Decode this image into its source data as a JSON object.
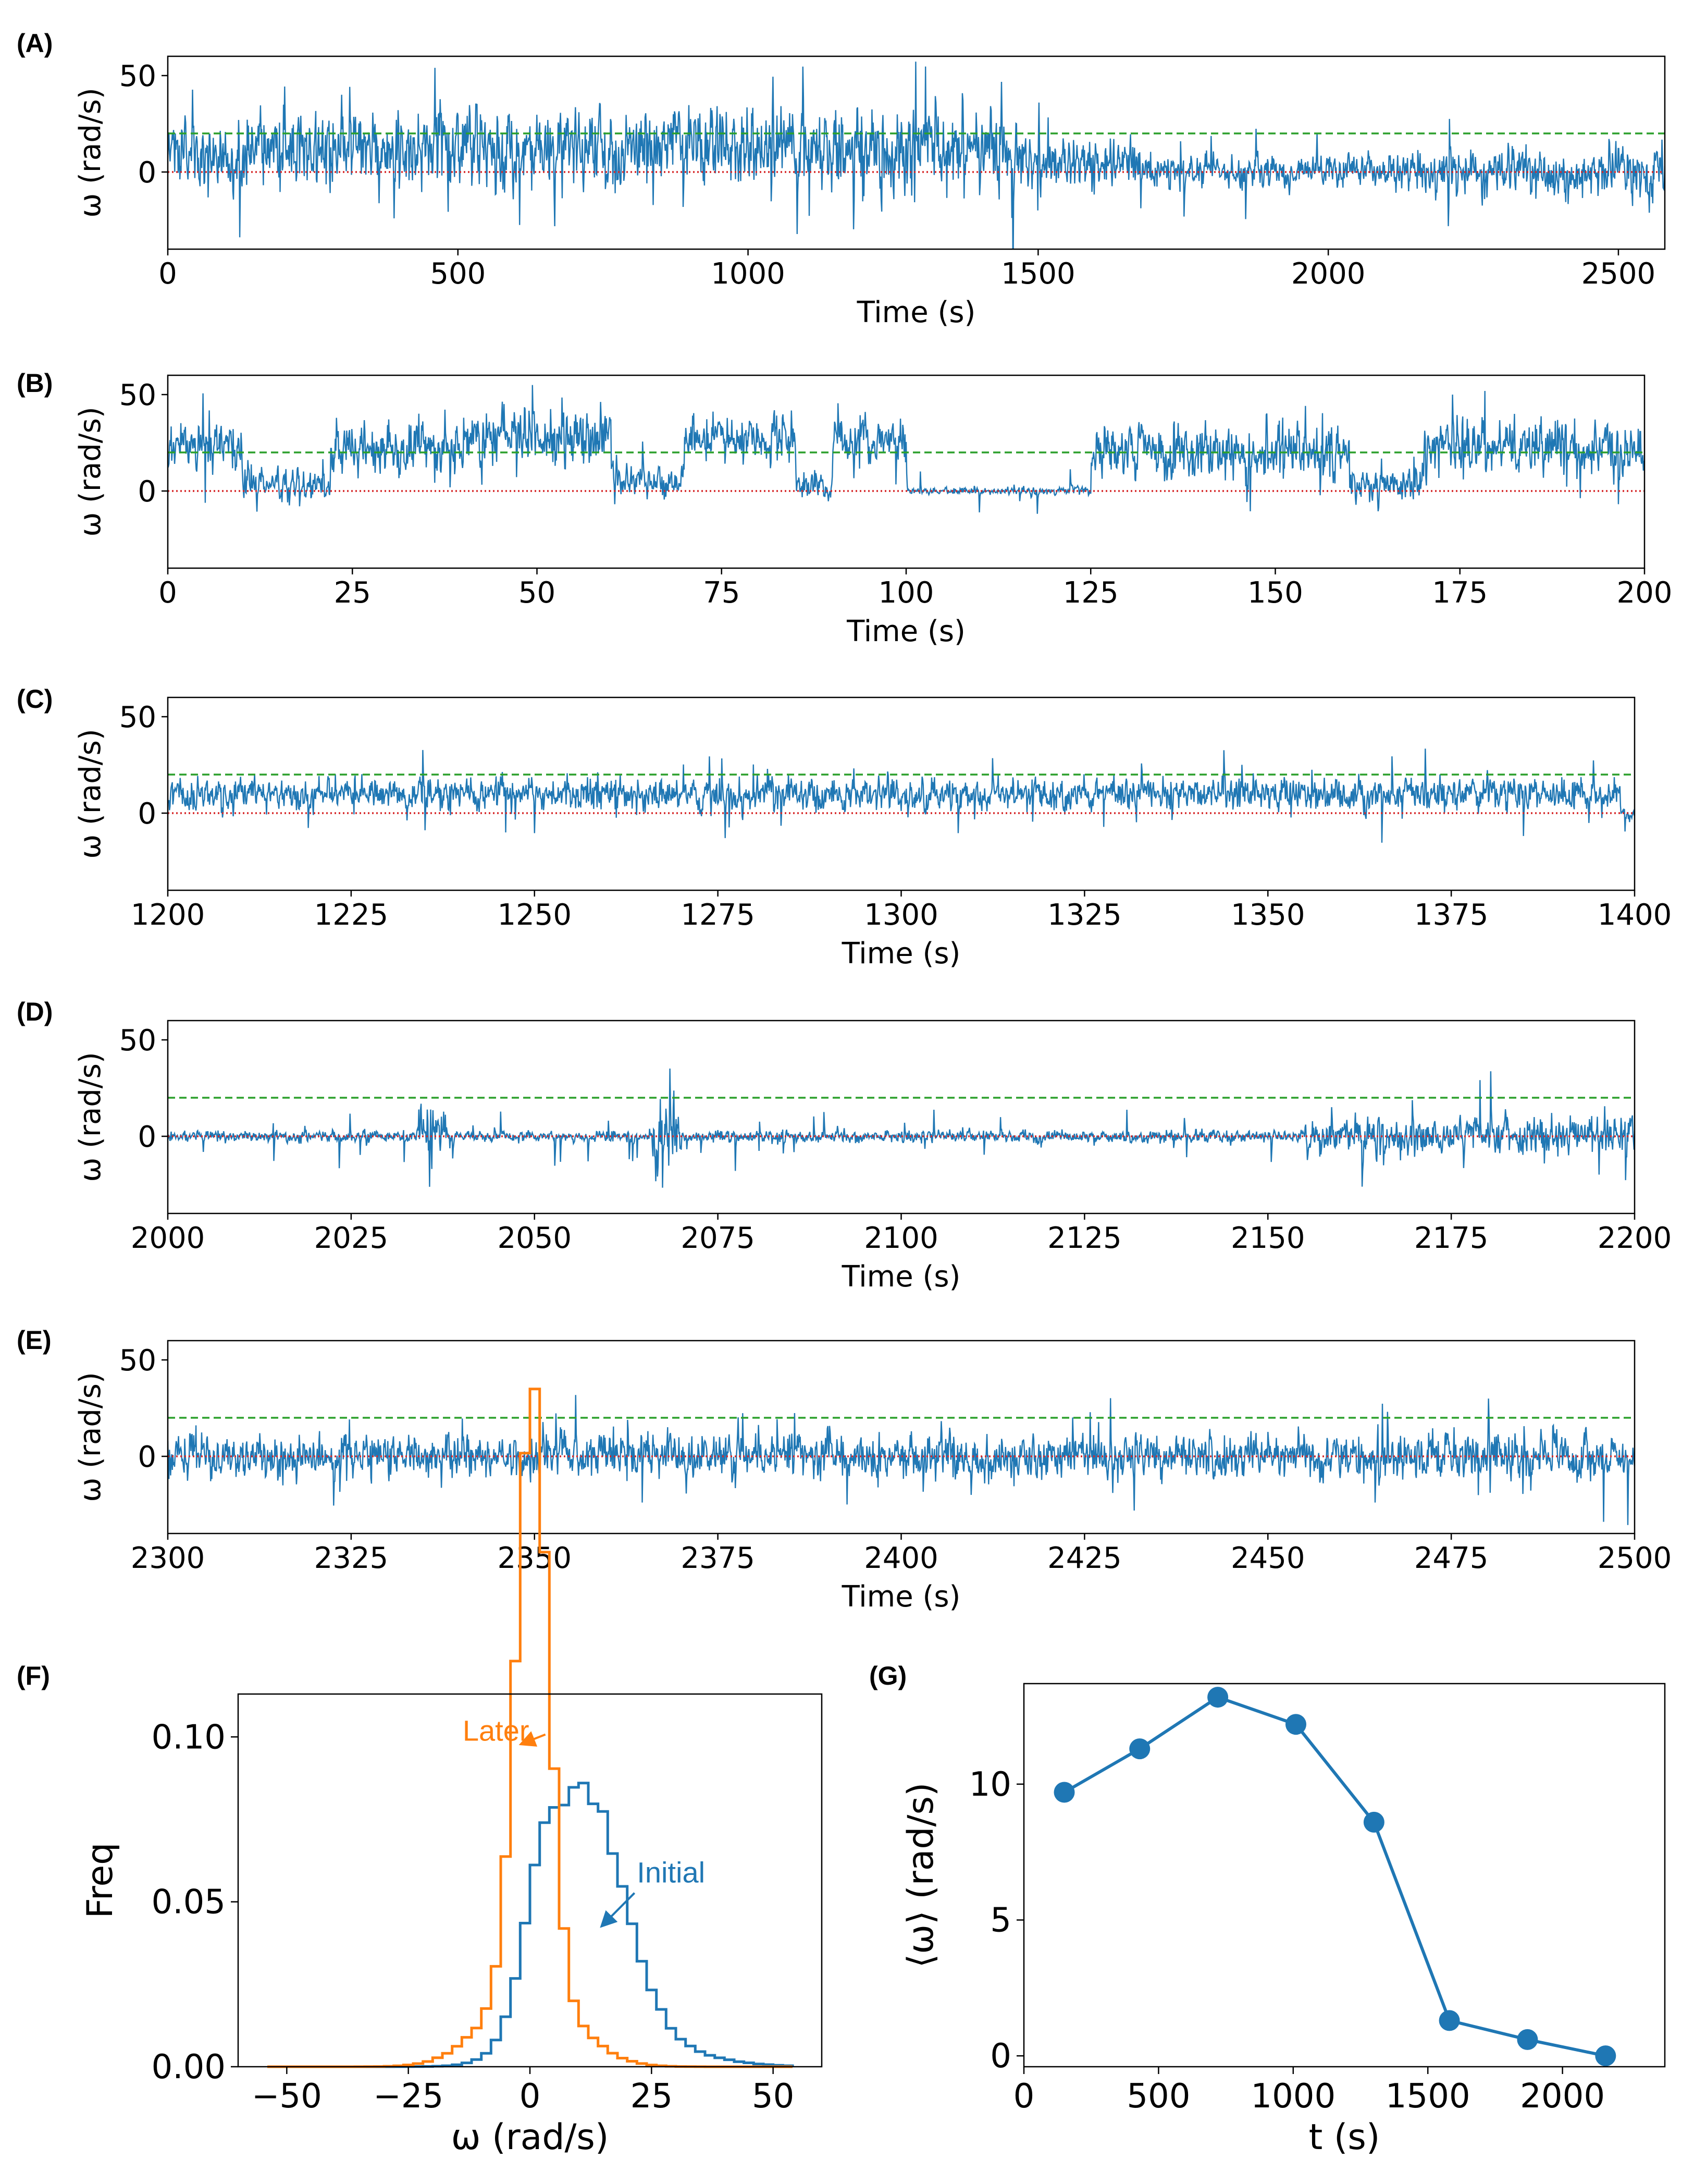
{
  "colors": {
    "trace": "#1f77b4",
    "later": "#ff7f0e",
    "threshold": "#2ca02c",
    "zero": "#d62728"
  },
  "chart_data": [
    {
      "id": "A",
      "label": "(A)",
      "type": "line",
      "title": "",
      "xlabel": "Time (s)",
      "ylabel": "ω (rad/s)",
      "xlim": [
        0,
        2580
      ],
      "ylim": [
        -40,
        60
      ],
      "xticks": [
        0,
        500,
        1000,
        1500,
        2000,
        2500
      ],
      "xtick_labels": [
        "0",
        "500",
        "1000",
        "1500",
        "2000",
        "2500"
      ],
      "yticks": [
        0,
        50
      ],
      "ytick_labels": [
        "0",
        "50"
      ],
      "reference_lines": [
        {
          "y": 20,
          "style": "dashed",
          "color": "green"
        },
        {
          "y": 0,
          "style": "dotted",
          "color": "red"
        }
      ],
      "segments": [
        {
          "start": 0,
          "end": 100,
          "mean": 10,
          "sd": 12
        },
        {
          "start": 100,
          "end": 120,
          "mean": 2,
          "sd": 8
        },
        {
          "start": 120,
          "end": 1480,
          "mean": 12,
          "sd": 15
        },
        {
          "start": 1480,
          "end": 1700,
          "mean": 4,
          "sd": 9
        },
        {
          "start": 1700,
          "end": 2150,
          "mean": 0,
          "sd": 6
        },
        {
          "start": 2150,
          "end": 2580,
          "mean": 0,
          "sd": 9
        }
      ]
    },
    {
      "id": "B",
      "label": "(B)",
      "type": "line",
      "title": "",
      "xlabel": "Time (s)",
      "ylabel": "ω (rad/s)",
      "xlim": [
        0,
        200
      ],
      "ylim": [
        -40,
        60
      ],
      "xticks": [
        0,
        25,
        50,
        75,
        100,
        125,
        150,
        175,
        200
      ],
      "xtick_labels": [
        "0",
        "25",
        "50",
        "75",
        "100",
        "125",
        "150",
        "175",
        "200"
      ],
      "yticks": [
        0,
        50
      ],
      "ytick_labels": [
        "0",
        "50"
      ],
      "reference_lines": [
        {
          "y": 20,
          "style": "dashed",
          "color": "green"
        },
        {
          "y": 0,
          "style": "dotted",
          "color": "red"
        }
      ],
      "segments": [
        {
          "start": 0,
          "end": 10,
          "mean": 22,
          "sd": 8
        },
        {
          "start": 10,
          "end": 22,
          "mean": 3,
          "sd": 6
        },
        {
          "start": 22,
          "end": 40,
          "mean": 22,
          "sd": 10
        },
        {
          "start": 40,
          "end": 60,
          "mean": 28,
          "sd": 11
        },
        {
          "start": 60,
          "end": 70,
          "mean": 5,
          "sd": 6
        },
        {
          "start": 70,
          "end": 85,
          "mean": 28,
          "sd": 8
        },
        {
          "start": 85,
          "end": 90,
          "mean": 2,
          "sd": 5
        },
        {
          "start": 90,
          "end": 100,
          "mean": 26,
          "sd": 8
        },
        {
          "start": 100,
          "end": 125,
          "mean": 0,
          "sd": 1.5
        },
        {
          "start": 125,
          "end": 160,
          "mean": 20,
          "sd": 10
        },
        {
          "start": 160,
          "end": 170,
          "mean": 3,
          "sd": 6
        },
        {
          "start": 170,
          "end": 200,
          "mean": 22,
          "sd": 10
        }
      ]
    },
    {
      "id": "C",
      "label": "(C)",
      "type": "line",
      "title": "",
      "xlabel": "Time (s)",
      "ylabel": "ω (rad/s)",
      "xlim": [
        1200,
        1400
      ],
      "ylim": [
        -40,
        60
      ],
      "xticks": [
        1200,
        1225,
        1250,
        1275,
        1300,
        1325,
        1350,
        1375,
        1400
      ],
      "xtick_labels": [
        "1200",
        "1225",
        "1250",
        "1275",
        "1300",
        "1325",
        "1350",
        "1375",
        "1400"
      ],
      "yticks": [
        0,
        50
      ],
      "ytick_labels": [
        "0",
        "50"
      ],
      "reference_lines": [
        {
          "y": 20,
          "style": "dashed",
          "color": "green"
        },
        {
          "y": 0,
          "style": "dotted",
          "color": "red"
        }
      ],
      "segments": [
        {
          "start": 1200,
          "end": 1398,
          "mean": 10,
          "sd": 6
        },
        {
          "start": 1398,
          "end": 1400,
          "mean": 0,
          "sd": 2
        }
      ]
    },
    {
      "id": "D",
      "label": "(D)",
      "type": "line",
      "title": "",
      "xlabel": "Time (s)",
      "ylabel": "ω (rad/s)",
      "xlim": [
        2000,
        2200
      ],
      "ylim": [
        -40,
        60
      ],
      "xticks": [
        2000,
        2025,
        2050,
        2075,
        2100,
        2125,
        2150,
        2175,
        2200
      ],
      "xtick_labels": [
        "2000",
        "2025",
        "2050",
        "2075",
        "2100",
        "2125",
        "2150",
        "2175",
        "2200"
      ],
      "yticks": [
        0,
        50
      ],
      "ytick_labels": [
        "0",
        "50"
      ],
      "reference_lines": [
        {
          "y": 20,
          "style": "dashed",
          "color": "green"
        },
        {
          "y": 0,
          "style": "dotted",
          "color": "red"
        }
      ],
      "segments": [
        {
          "start": 2000,
          "end": 2034,
          "mean": 0,
          "sd": 2
        },
        {
          "start": 2034,
          "end": 2038,
          "mean": 3,
          "sd": 12
        },
        {
          "start": 2038,
          "end": 2066,
          "mean": 0,
          "sd": 2
        },
        {
          "start": 2066,
          "end": 2070,
          "mean": 3,
          "sd": 12
        },
        {
          "start": 2070,
          "end": 2155,
          "mean": 0,
          "sd": 2.2
        },
        {
          "start": 2155,
          "end": 2200,
          "mean": 1,
          "sd": 7
        }
      ]
    },
    {
      "id": "E",
      "label": "(E)",
      "type": "line",
      "title": "",
      "xlabel": "Time (s)",
      "ylabel": "ω (rad/s)",
      "xlim": [
        2300,
        2500
      ],
      "ylim": [
        -40,
        60
      ],
      "xticks": [
        2300,
        2325,
        2350,
        2375,
        2400,
        2425,
        2450,
        2475,
        2500
      ],
      "xtick_labels": [
        "2300",
        "2325",
        "2350",
        "2375",
        "2400",
        "2425",
        "2450",
        "2475",
        "2500"
      ],
      "yticks": [
        0,
        50
      ],
      "ytick_labels": [
        "0",
        "50"
      ],
      "reference_lines": [
        {
          "y": 20,
          "style": "dashed",
          "color": "green"
        },
        {
          "y": 0,
          "style": "dotted",
          "color": "red"
        }
      ],
      "segments": [
        {
          "start": 2300,
          "end": 2500,
          "mean": 0,
          "sd": 8
        }
      ]
    },
    {
      "id": "F",
      "label": "(F)",
      "type": "histogram",
      "title": "",
      "xlabel": "ω (rad/s)",
      "ylabel": "Freq",
      "xlim": [
        -60,
        60
      ],
      "ylim": [
        0,
        0.113
      ],
      "xticks": [
        -50,
        -25,
        0,
        25,
        50
      ],
      "xtick_labels": [
        "−50",
        "−25",
        "0",
        "25",
        "50"
      ],
      "yticks": [
        0,
        0.05,
        0.1
      ],
      "ytick_labels": [
        "0.00",
        "0.05",
        "0.10"
      ],
      "bin_width": 2,
      "series": [
        {
          "name": "Later",
          "color": "orange",
          "range": [
            -54,
            54
          ],
          "components": [
            {
              "mean": 0.5,
              "sd": 3.2,
              "weight": 0.72
            },
            {
              "mean": 0,
              "sd": 9,
              "weight": 0.28
            }
          ]
        },
        {
          "name": "Initial",
          "color": "blue",
          "range": [
            -54,
            54
          ],
          "components": [
            {
              "mean": 11,
              "sd": 8,
              "weight": 0.78
            },
            {
              "mean": 2,
              "sd": 3.5,
              "weight": 0.1
            },
            {
              "mean": 20,
              "sd": 13,
              "weight": 0.12
            }
          ]
        }
      ],
      "annotations": [
        {
          "text": "Later",
          "color": "orange",
          "x": -7,
          "y": 0.102,
          "arrow_to": [
            -1.5,
            0.098
          ]
        },
        {
          "text": "Initial",
          "color": "blue",
          "x": 29,
          "y": 0.059,
          "arrow_to": [
            15,
            0.043
          ]
        }
      ]
    },
    {
      "id": "G",
      "label": "(G)",
      "type": "line",
      "title": "",
      "xlabel": "t (s)",
      "ylabel": "⟨ω⟩ (rad/s)",
      "xlim": [
        0,
        2380
      ],
      "ylim": [
        -0.4,
        13.7
      ],
      "xticks": [
        0,
        500,
        1000,
        1500,
        2000
      ],
      "xtick_labels": [
        "0",
        "500",
        "1000",
        "1500",
        "2000"
      ],
      "yticks": [
        0,
        5,
        10
      ],
      "ytick_labels": [
        "0",
        "5",
        "10"
      ],
      "x": [
        150,
        430,
        720,
        1010,
        1300,
        1580,
        1870,
        2160
      ],
      "y": [
        9.7,
        11.3,
        13.2,
        12.2,
        8.6,
        1.3,
        0.6,
        0.0
      ],
      "markers": true
    }
  ]
}
